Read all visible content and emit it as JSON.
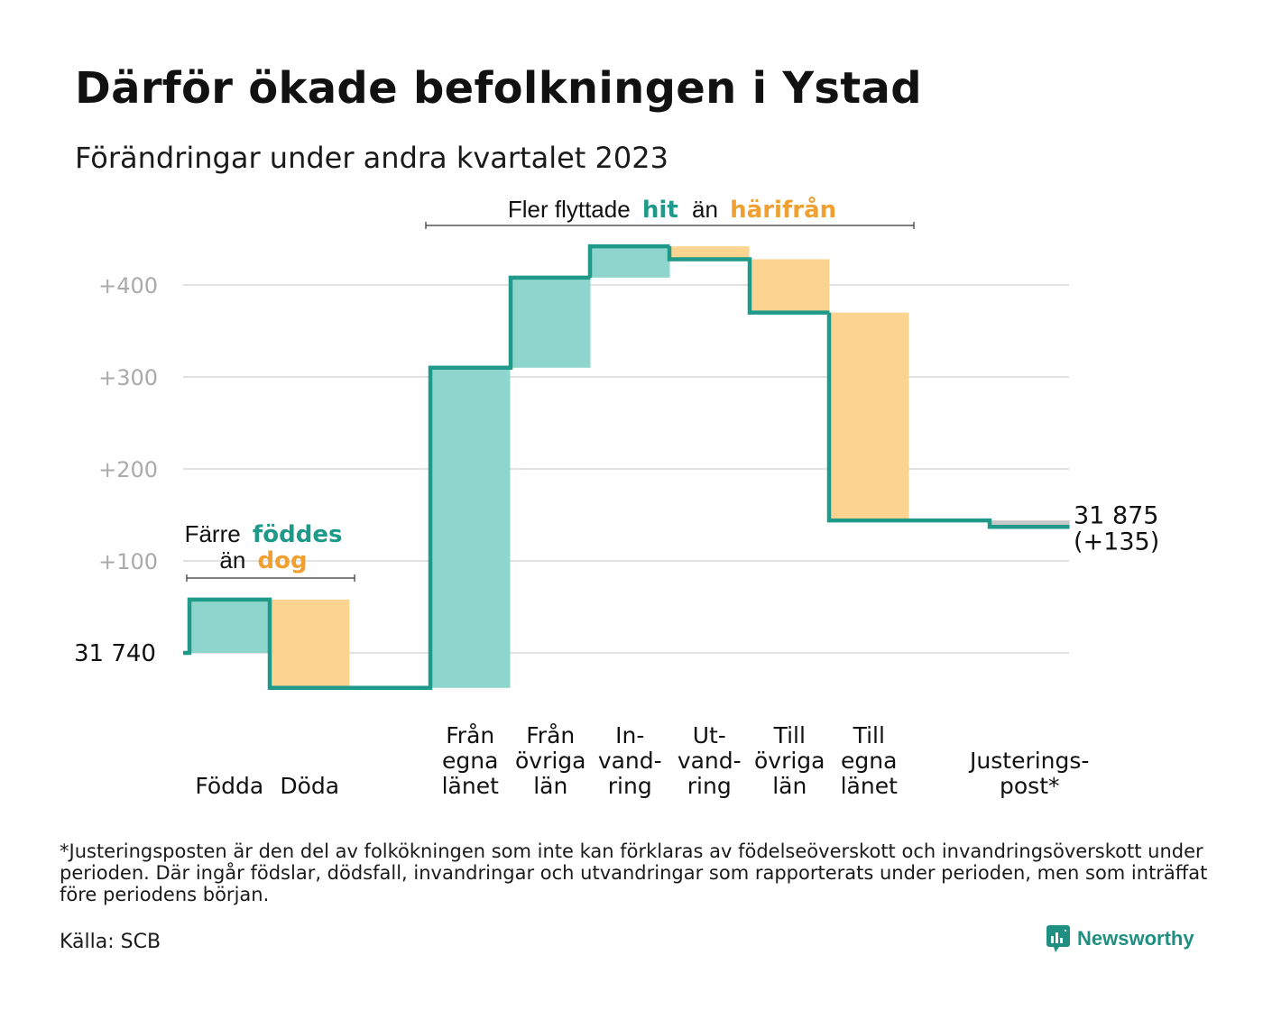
{
  "header": {
    "title": "Därför ökade befolkningen i Ystad",
    "subtitle": "Förändringar under andra kvartalet 2023"
  },
  "annotations": {
    "moved": {
      "prefix": "Fler flyttade",
      "hit": "hit",
      "middle": "än",
      "harifran": "härifrån"
    },
    "births_line1_prefix": "Färre",
    "births_line1_word": "föddes",
    "births_line2_prefix": "än",
    "births_line2_word": "dog"
  },
  "colors": {
    "increase": "#8ed6cd",
    "decrease": "#fbd58f",
    "adjustment": "#c8c8c8",
    "line": "#1f9a8a",
    "teal_text": "#1f9a8a",
    "orange_text": "#f0a030",
    "grid": "#e2e2e2"
  },
  "chart_data": {
    "type": "waterfall",
    "start_value": 31740,
    "start_label": "31 740",
    "end_label": "31 875",
    "end_change_label": "(+135)",
    "y_tick_labels": [
      "+100",
      "+200",
      "+300",
      "+400"
    ],
    "y_ticks": [
      100,
      200,
      300,
      400
    ],
    "ylim": [
      -60,
      450
    ],
    "steps": [
      {
        "label": [
          "Födda"
        ],
        "change": 58,
        "kind": "increase"
      },
      {
        "label": [
          "Döda"
        ],
        "change": -96,
        "kind": "decrease"
      },
      {
        "label": [
          "Från",
          "egna",
          "länet"
        ],
        "change": 348,
        "kind": "increase"
      },
      {
        "label": [
          "Från",
          "övriga",
          "län"
        ],
        "change": 98,
        "kind": "increase"
      },
      {
        "label": [
          "In-",
          "vand-",
          "ring"
        ],
        "change": 34,
        "kind": "increase"
      },
      {
        "label": [
          "Ut-",
          "vand-",
          "ring"
        ],
        "change": -14,
        "kind": "decrease"
      },
      {
        "label": [
          "Till",
          "övriga",
          "län"
        ],
        "change": -58,
        "kind": "decrease"
      },
      {
        "label": [
          "Till",
          "egna",
          "länet"
        ],
        "change": -226,
        "kind": "decrease"
      },
      {
        "label": [
          "Justerings-",
          "post*"
        ],
        "change": -7,
        "kind": "adjustment"
      }
    ]
  },
  "footer": {
    "footnote": "*Justeringsposten är den del av folkökningen som inte kan förklaras av födelseöverskott och invandringsöverskott under perioden. Där ingår födslar, dödsfall, invandringar och utvandringar som rapporterats under perioden, men som inträffat före periodens början.",
    "source": "Källa: SCB",
    "brand": "Newsworthy"
  }
}
